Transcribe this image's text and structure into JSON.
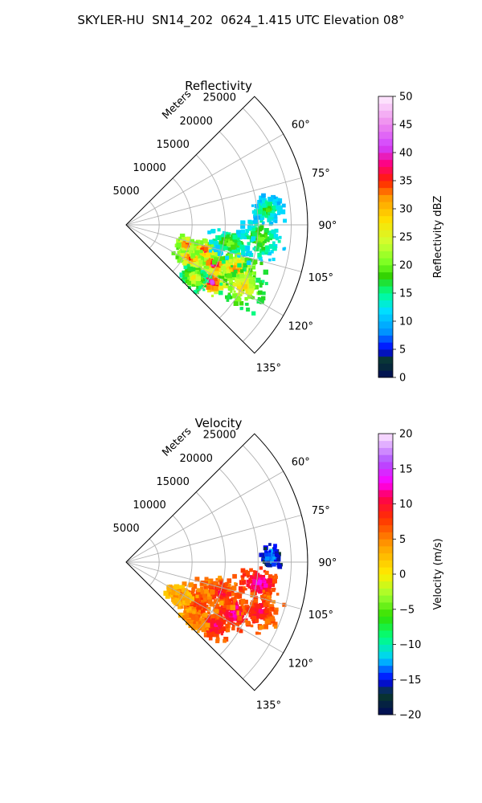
{
  "figure": {
    "title": "SKYLER-HU  SN14_202  0624_1.415 UTC Elevation 08°"
  },
  "chart_data": [
    {
      "type": "heatmap",
      "projection": "polar-sector",
      "title": "Reflectivity",
      "radial_label": "Meters",
      "radial_ticks": [
        5000,
        10000,
        15000,
        20000,
        25000
      ],
      "radial_tick_labels": [
        "5000",
        "10000",
        "15000",
        "20000",
        "25000"
      ],
      "rlim": [
        0,
        27500
      ],
      "angle_ticks": [
        60,
        75,
        90,
        105,
        120,
        135
      ],
      "angle_tick_labels": [
        "60°",
        "75°",
        "90°",
        "105°",
        "120°",
        "135°"
      ],
      "angle_range": [
        45,
        135
      ],
      "grid": true,
      "colorbar": {
        "label": "Reflectivity dBZ",
        "min": 0,
        "max": 50,
        "ticks": [
          0,
          5,
          10,
          15,
          20,
          25,
          30,
          35,
          40,
          45,
          50
        ],
        "tick_labels": [
          "0",
          "5",
          "10",
          "15",
          "20",
          "25",
          "30",
          "35",
          "40",
          "45",
          "50"
        ],
        "stops": [
          {
            "v": 0,
            "color": "#000a5a"
          },
          {
            "v": 3,
            "color": "#0a3a2a"
          },
          {
            "v": 5,
            "color": "#0000ff"
          },
          {
            "v": 8,
            "color": "#0090ff"
          },
          {
            "v": 12,
            "color": "#00e0ff"
          },
          {
            "v": 15,
            "color": "#00ff90"
          },
          {
            "v": 18,
            "color": "#30d000"
          },
          {
            "v": 20,
            "color": "#70ff20"
          },
          {
            "v": 24,
            "color": "#d0ff30"
          },
          {
            "v": 28,
            "color": "#ffe000"
          },
          {
            "v": 32,
            "color": "#ff9a00"
          },
          {
            "v": 35,
            "color": "#ff2000"
          },
          {
            "v": 38,
            "color": "#ff0080"
          },
          {
            "v": 41,
            "color": "#d040ff"
          },
          {
            "v": 45,
            "color": "#ee88ee"
          },
          {
            "v": 50,
            "color": "#ffeeff"
          }
        ]
      },
      "echo_cells": [
        {
          "r": 14500,
          "theta": 114,
          "value": 40,
          "r_spread": 1800,
          "t_spread": 4
        },
        {
          "r": 12500,
          "theta": 108,
          "value": 38,
          "r_spread": 1400,
          "t_spread": 4
        },
        {
          "r": 15500,
          "theta": 124,
          "value": 44,
          "r_spread": 1500,
          "t_spread": 4
        },
        {
          "r": 18000,
          "theta": 112,
          "value": 34,
          "r_spread": 2200,
          "t_spread": 6
        },
        {
          "r": 20000,
          "theta": 118,
          "value": 30,
          "r_spread": 2400,
          "t_spread": 6
        },
        {
          "r": 11000,
          "theta": 118,
          "value": 36,
          "r_spread": 1600,
          "t_spread": 5
        },
        {
          "r": 9500,
          "theta": 108,
          "value": 38,
          "r_spread": 1000,
          "t_spread": 4
        },
        {
          "r": 20500,
          "theta": 96,
          "value": 21,
          "r_spread": 2200,
          "t_spread": 7
        },
        {
          "r": 21500,
          "theta": 84,
          "value": 19,
          "r_spread": 1500,
          "t_spread": 4
        },
        {
          "r": 16000,
          "theta": 100,
          "value": 22,
          "r_spread": 2000,
          "t_spread": 5
        },
        {
          "r": 13000,
          "theta": 128,
          "value": 28,
          "r_spread": 1500,
          "t_spread": 5
        }
      ]
    },
    {
      "type": "heatmap",
      "projection": "polar-sector",
      "title": "Velocity",
      "radial_label": "Meters",
      "radial_ticks": [
        5000,
        10000,
        15000,
        20000,
        25000
      ],
      "radial_tick_labels": [
        "5000",
        "10000",
        "15000",
        "20000",
        "25000"
      ],
      "rlim": [
        0,
        27500
      ],
      "angle_ticks": [
        60,
        75,
        90,
        105,
        120,
        135
      ],
      "angle_tick_labels": [
        "60°",
        "75°",
        "90°",
        "105°",
        "120°",
        "135°"
      ],
      "angle_range": [
        45,
        135
      ],
      "grid": true,
      "colorbar": {
        "label": "Velocity (m/s)",
        "min": -20,
        "max": 20,
        "ticks": [
          -20,
          -15,
          -10,
          -5,
          0,
          5,
          10,
          15,
          20
        ],
        "tick_labels": [
          "−20",
          "−15",
          "−10",
          "−5",
          "0",
          "5",
          "10",
          "15",
          "20"
        ],
        "stops": [
          {
            "v": -20,
            "color": "#000a5a"
          },
          {
            "v": -17,
            "color": "#0a3a2a"
          },
          {
            "v": -15,
            "color": "#0000ff"
          },
          {
            "v": -12,
            "color": "#00d0ff"
          },
          {
            "v": -9,
            "color": "#00ff80"
          },
          {
            "v": -6,
            "color": "#30e000"
          },
          {
            "v": -3,
            "color": "#a0ff30"
          },
          {
            "v": 0,
            "color": "#ffee00"
          },
          {
            "v": 4,
            "color": "#ffa000"
          },
          {
            "v": 8,
            "color": "#ff3000"
          },
          {
            "v": 11,
            "color": "#ff0050"
          },
          {
            "v": 13,
            "color": "#ff00ff"
          },
          {
            "v": 16,
            "color": "#b050ff"
          },
          {
            "v": 20,
            "color": "#ffe8ff"
          }
        ]
      },
      "echo_cells": [
        {
          "r": 18000,
          "theta": 115,
          "value": 13,
          "r_spread": 2200,
          "t_spread": 5
        },
        {
          "r": 15000,
          "theta": 108,
          "value": 10,
          "r_spread": 2500,
          "t_spread": 6
        },
        {
          "r": 20500,
          "theta": 99,
          "value": 14,
          "r_spread": 1800,
          "t_spread": 4
        },
        {
          "r": 12000,
          "theta": 120,
          "value": 9,
          "r_spread": 2200,
          "t_spread": 7
        },
        {
          "r": 16500,
          "theta": 126,
          "value": 12,
          "r_spread": 1800,
          "t_spread": 4
        },
        {
          "r": 21500,
          "theta": 110,
          "value": 11,
          "r_spread": 2000,
          "t_spread": 5
        },
        {
          "r": 9500,
          "theta": 122,
          "value": 5,
          "r_spread": 1400,
          "t_spread": 6
        },
        {
          "r": 22000,
          "theta": 88,
          "value": -11,
          "r_spread": 900,
          "t_spread": 3
        },
        {
          "r": 13500,
          "theta": 130,
          "value": 7,
          "r_spread": 1500,
          "t_spread": 4
        }
      ]
    }
  ]
}
